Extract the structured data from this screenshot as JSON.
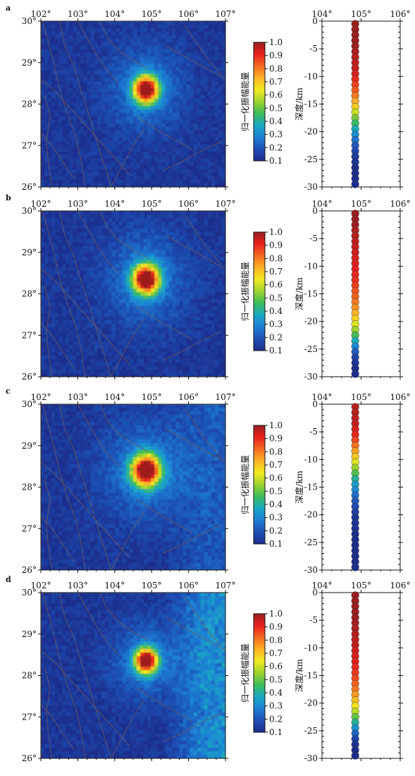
{
  "chart_data": {
    "type": "heatmap",
    "panels": [
      {
        "label": "a",
        "map": {
          "xlim": [
            102,
            107
          ],
          "ylim": [
            26,
            30
          ],
          "x_ticks": [
            "102°",
            "103°",
            "104°",
            "105°",
            "106°",
            "107°"
          ],
          "y_ticks": [
            "30°",
            "29°",
            "28°",
            "27°",
            "26°"
          ],
          "peak_lon": 104.85,
          "peak_lat": 28.35,
          "peak_spread": 0.22,
          "east_background": 0.0
        },
        "colorbar": {
          "label": "归一化振幅能量",
          "ticks": [
            "1.0",
            "0.9",
            "0.8",
            "0.7",
            "0.6",
            "0.5",
            "0.4",
            "0.3",
            "0.2",
            "0.1"
          ],
          "range": [
            0.1,
            1.0
          ]
        },
        "depth": {
          "xlim": [
            104,
            106
          ],
          "ylim": [
            -30,
            0
          ],
          "x_ticks": [
            "104°",
            "105°",
            "106°"
          ],
          "y_ticks": [
            "0",
            "-5",
            "-10",
            "-15",
            "-20",
            "-25",
            "-30"
          ],
          "ylabel": "深度/km",
          "lon": 104.85,
          "values": [
            1.0,
            1.0,
            1.0,
            1.0,
            1.0,
            0.98,
            0.97,
            0.96,
            0.95,
            0.93,
            0.9,
            0.87,
            0.84,
            0.8,
            0.74,
            0.68,
            0.6,
            0.52,
            0.45,
            0.38,
            0.32,
            0.26,
            0.21,
            0.17,
            0.14,
            0.12,
            0.1,
            0.1,
            0.1,
            0.1
          ]
        }
      },
      {
        "label": "b",
        "map": {
          "xlim": [
            102,
            107
          ],
          "ylim": [
            26,
            30
          ],
          "x_ticks": [
            "102°",
            "103°",
            "104°",
            "105°",
            "106°",
            "107°"
          ],
          "y_ticks": [
            "30°",
            "29°",
            "28°",
            "27°",
            "26°"
          ],
          "peak_lon": 104.85,
          "peak_lat": 28.35,
          "peak_spread": 0.24,
          "east_background": 0.0
        },
        "colorbar": {
          "label": "归一化振幅能量",
          "ticks": [
            "1.0",
            "0.9",
            "0.8",
            "0.7",
            "0.6",
            "0.5",
            "0.4",
            "0.3",
            "0.2",
            "0.1"
          ],
          "range": [
            0.1,
            1.0
          ]
        },
        "depth": {
          "xlim": [
            104,
            106
          ],
          "ylim": [
            -30,
            0
          ],
          "x_ticks": [
            "104°",
            "105°",
            "106°"
          ],
          "y_ticks": [
            "0",
            "-5",
            "-10",
            "-15",
            "-20",
            "-25",
            "-30"
          ],
          "ylabel": "深度/km",
          "lon": 104.85,
          "values": [
            1.0,
            1.0,
            1.0,
            0.98,
            0.97,
            0.96,
            0.95,
            0.94,
            0.93,
            0.92,
            0.91,
            0.9,
            0.89,
            0.87,
            0.85,
            0.83,
            0.8,
            0.77,
            0.73,
            0.68,
            0.62,
            0.55,
            0.47,
            0.38,
            0.3,
            0.22,
            0.16,
            0.12,
            0.1,
            0.1
          ]
        }
      },
      {
        "label": "c",
        "map": {
          "xlim": [
            102,
            107
          ],
          "ylim": [
            26,
            30
          ],
          "x_ticks": [
            "102°",
            "103°",
            "104°",
            "105°",
            "106°",
            "107°"
          ],
          "y_ticks": [
            "30°",
            "29°",
            "28°",
            "27°",
            "26°"
          ],
          "peak_lon": 104.85,
          "peak_lat": 28.4,
          "peak_spread": 0.26,
          "east_background": 0.08
        },
        "colorbar": {
          "label": "归一化振幅能量",
          "ticks": [
            "1.0",
            "0.9",
            "0.8",
            "0.7",
            "0.6",
            "0.5",
            "0.4",
            "0.3",
            "0.2",
            "0.1"
          ],
          "range": [
            0.1,
            1.0
          ]
        },
        "depth": {
          "xlim": [
            104,
            106
          ],
          "ylim": [
            -30,
            0
          ],
          "x_ticks": [
            "104°",
            "105°",
            "106°"
          ],
          "y_ticks": [
            "0",
            "-5",
            "-10",
            "-15",
            "-20",
            "-25",
            "-30"
          ],
          "ylabel": "深度/km",
          "lon": 104.85,
          "values": [
            0.97,
            0.97,
            0.96,
            0.95,
            0.93,
            0.9,
            0.86,
            0.81,
            0.75,
            0.69,
            0.62,
            0.55,
            0.48,
            0.41,
            0.35,
            0.3,
            0.25,
            0.21,
            0.18,
            0.15,
            0.13,
            0.12,
            0.11,
            0.1,
            0.1,
            0.1,
            0.1,
            0.1,
            0.1,
            0.1
          ]
        }
      },
      {
        "label": "d",
        "map": {
          "xlim": [
            102,
            107
          ],
          "ylim": [
            26,
            30
          ],
          "x_ticks": [
            "102°",
            "103°",
            "104°",
            "105°",
            "106°",
            "107°"
          ],
          "y_ticks": [
            "30°",
            "29°",
            "28°",
            "27°",
            "26°"
          ],
          "peak_lon": 104.85,
          "peak_lat": 28.35,
          "peak_spread": 0.2,
          "east_background": 0.18
        },
        "colorbar": {
          "label": "归一化振幅能量",
          "ticks": [
            "1.0",
            "0.9",
            "0.8",
            "0.7",
            "0.6",
            "0.5",
            "0.4",
            "0.3",
            "0.2",
            "0.1"
          ],
          "range": [
            0.1,
            1.0
          ]
        },
        "depth": {
          "xlim": [
            104,
            106
          ],
          "ylim": [
            -30,
            0
          ],
          "x_ticks": [
            "104°",
            "105°",
            "106°"
          ],
          "y_ticks": [
            "0",
            "-5",
            "-10",
            "-15",
            "-20",
            "-25",
            "-30"
          ],
          "ylabel": "深度/km",
          "lon": 104.85,
          "values": [
            1.0,
            1.0,
            1.0,
            1.0,
            1.0,
            0.99,
            0.98,
            0.97,
            0.96,
            0.95,
            0.94,
            0.93,
            0.92,
            0.9,
            0.88,
            0.86,
            0.83,
            0.8,
            0.76,
            0.71,
            0.65,
            0.58,
            0.5,
            0.41,
            0.32,
            0.23,
            0.16,
            0.12,
            0.1,
            0.1
          ]
        }
      }
    ],
    "colormap": [
      "#1d2d8c",
      "#1f4fb4",
      "#1f7ed4",
      "#19a9c4",
      "#3cbc5a",
      "#9ed22e",
      "#f2ea22",
      "#fbb226",
      "#f56a1f",
      "#e8201d",
      "#9c1e1e"
    ],
    "fault_color": "#6f5a5a"
  }
}
